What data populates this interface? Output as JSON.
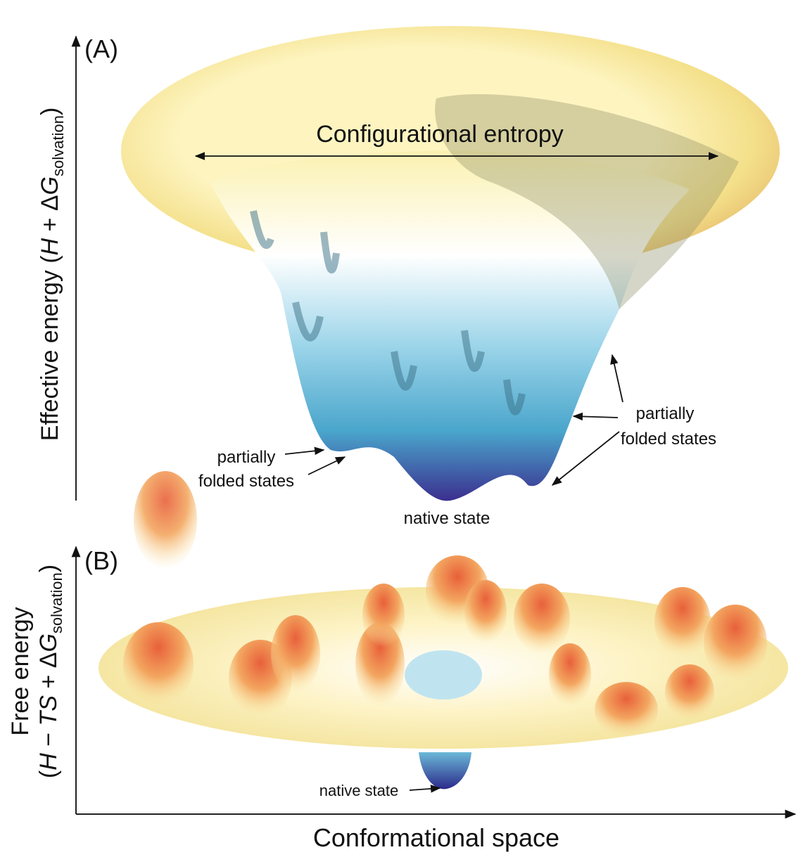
{
  "panel_a": {
    "label": "(A)",
    "entropy_label": "Configurational entropy",
    "y_label": [
      "Effective energy (",
      "H",
      " + Δ",
      "G",
      "solvation",
      ")"
    ],
    "left_annotation": [
      "partially",
      "folded states"
    ],
    "right_annotation": [
      "partially",
      "folded states"
    ],
    "bottom_annotation": "native state"
  },
  "panel_b": {
    "label": "(B)",
    "y_label_line1": "Free energy",
    "y_label_line2": [
      "(",
      "H",
      " − ",
      "TS",
      " + Δ",
      "G",
      "solvation",
      ")"
    ],
    "bottom_annotation": "native state",
    "x_label": "Conformational space"
  }
}
